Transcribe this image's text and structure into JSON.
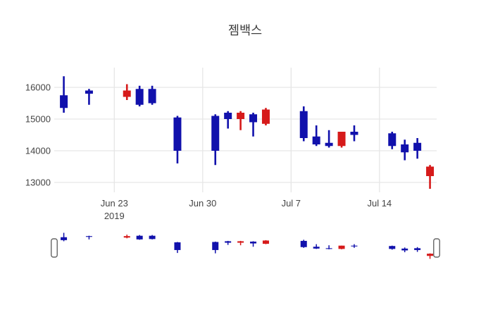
{
  "chart_data": {
    "type": "candlestick",
    "title": "젬백스",
    "legend": "none",
    "grid": true,
    "x_axis": {
      "ticks": [
        {
          "date": "2019-06-23",
          "label": "Jun 23",
          "sublabel": "2019"
        },
        {
          "date": "2019-06-30",
          "label": "Jun 30",
          "sublabel": ""
        },
        {
          "date": "2019-07-07",
          "label": "Jul 7",
          "sublabel": ""
        },
        {
          "date": "2019-07-14",
          "label": "Jul 14",
          "sublabel": ""
        }
      ]
    },
    "y_axis": {
      "ticks": [
        16000,
        15000,
        14000,
        13000
      ],
      "range": [
        12700,
        16450
      ]
    },
    "rangeslider": {
      "visible": true,
      "handles": 2
    },
    "increasing_color": "#d61a1a",
    "decreasing_color": "#1111ac",
    "candles": [
      {
        "date": "2019-06-19",
        "open": 15750,
        "high": 16350,
        "low": 15200,
        "close": 15350
      },
      {
        "date": "2019-06-21",
        "open": 15900,
        "high": 15950,
        "low": 15450,
        "close": 15800
      },
      {
        "date": "2019-06-24",
        "open": 15700,
        "high": 16100,
        "low": 15600,
        "close": 15900
      },
      {
        "date": "2019-06-25",
        "open": 15950,
        "high": 16050,
        "low": 15400,
        "close": 15450
      },
      {
        "date": "2019-06-26",
        "open": 15950,
        "high": 16050,
        "low": 15450,
        "close": 15500
      },
      {
        "date": "2019-06-28",
        "open": 15050,
        "high": 15100,
        "low": 13600,
        "close": 14000
      },
      {
        "date": "2019-07-01",
        "open": 15100,
        "high": 15150,
        "low": 13550,
        "close": 14000
      },
      {
        "date": "2019-07-02",
        "open": 15200,
        "high": 15250,
        "low": 14700,
        "close": 15000
      },
      {
        "date": "2019-07-03",
        "open": 15000,
        "high": 15250,
        "low": 14650,
        "close": 15200
      },
      {
        "date": "2019-07-04",
        "open": 15150,
        "high": 15200,
        "low": 14450,
        "close": 14900
      },
      {
        "date": "2019-07-05",
        "open": 14850,
        "high": 15350,
        "low": 14800,
        "close": 15300
      },
      {
        "date": "2019-07-08",
        "open": 15250,
        "high": 15400,
        "low": 14300,
        "close": 14400
      },
      {
        "date": "2019-07-09",
        "open": 14450,
        "high": 14800,
        "low": 14150,
        "close": 14200
      },
      {
        "date": "2019-07-10",
        "open": 14250,
        "high": 14650,
        "low": 14100,
        "close": 14150
      },
      {
        "date": "2019-07-11",
        "open": 14150,
        "high": 14600,
        "low": 14100,
        "close": 14600
      },
      {
        "date": "2019-07-12",
        "open": 14600,
        "high": 14800,
        "low": 14300,
        "close": 14500
      },
      {
        "date": "2019-07-15",
        "open": 14550,
        "high": 14600,
        "low": 14050,
        "close": 14150
      },
      {
        "date": "2019-07-16",
        "open": 14200,
        "high": 14350,
        "low": 13700,
        "close": 13950
      },
      {
        "date": "2019-07-17",
        "open": 14250,
        "high": 14400,
        "low": 13750,
        "close": 14000
      },
      {
        "date": "2019-07-18",
        "open": 13200,
        "high": 13550,
        "low": 12800,
        "close": 13500
      }
    ]
  },
  "colors": {
    "background": "#ffffff",
    "grid": "#e6e6e6",
    "tick_text": "#444444",
    "title_text": "#3d3d3d",
    "slider_handle_fill": "#ffffff",
    "slider_handle_border": "#666666"
  }
}
